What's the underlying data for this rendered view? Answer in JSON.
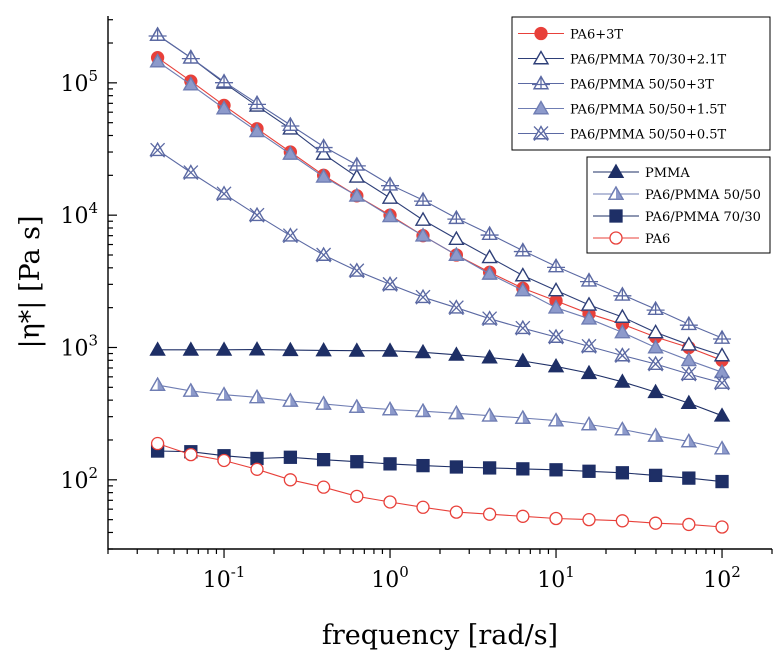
{
  "chart_data": {
    "type": "line",
    "xlabel": "frequency [rad/s]",
    "ylabel": "|η*| [Pa s]",
    "x_scale": "log",
    "y_scale": "log",
    "xlim": [
      0.02,
      200
    ],
    "ylim": [
      30,
      320000
    ],
    "x_ticks": [
      {
        "value": 0.1,
        "base": "10",
        "exp": "-1"
      },
      {
        "value": 1,
        "base": "10",
        "exp": "0"
      },
      {
        "value": 10,
        "base": "10",
        "exp": "1"
      },
      {
        "value": 100,
        "base": "10",
        "exp": "2"
      }
    ],
    "y_ticks": [
      {
        "value": 100,
        "base": "10",
        "exp": "2"
      },
      {
        "value": 1000,
        "base": "10",
        "exp": "3"
      },
      {
        "value": 10000,
        "base": "10",
        "exp": "4"
      },
      {
        "value": 100000,
        "base": "10",
        "exp": "5"
      }
    ],
    "grid": false,
    "x": [
      0.0398,
      0.0631,
      0.1,
      0.158,
      0.251,
      0.398,
      0.631,
      1.0,
      1.58,
      2.51,
      3.98,
      6.31,
      10.0,
      15.8,
      25.1,
      39.8,
      63.1,
      100.0
    ],
    "series": [
      {
        "name": "PA6+3T",
        "color": "#e8403a",
        "line": "#e8403a",
        "marker": "circle",
        "fill": "#e8403a",
        "values": [
          155000,
          103000,
          67500,
          45000,
          30000,
          20000,
          14000,
          10000,
          7000,
          5000,
          3700,
          2800,
          2250,
          1800,
          1500,
          1200,
          1000,
          800
        ]
      },
      {
        "name": "PA6/PMMA 70/30+2.1T",
        "color": "#2e3f78",
        "line": "#2e3f78",
        "marker": "triangle",
        "fill": "none",
        "values": [
          230000,
          155000,
          100000,
          67000,
          45000,
          29000,
          19500,
          13500,
          9200,
          6600,
          4800,
          3500,
          2700,
          2100,
          1700,
          1300,
          1050,
          870
        ]
      },
      {
        "name": "PA6/PMMA 50/50+3T",
        "color": "#5b69a3",
        "line": "#5b69a3",
        "marker": "triangle-cross",
        "fill": "none",
        "values": [
          230000,
          155000,
          102000,
          70000,
          48000,
          33000,
          24000,
          17000,
          13000,
          9500,
          7200,
          5400,
          4100,
          3200,
          2500,
          1950,
          1500,
          1180
        ]
      },
      {
        "name": "PA6/PMMA 50/50+1.5T",
        "color": "#6f7db3",
        "line": "#6f7db3",
        "marker": "triangle",
        "fill": "#8d9acb",
        "values": [
          145000,
          97000,
          64000,
          43000,
          29000,
          19500,
          14000,
          9800,
          7000,
          5000,
          3600,
          2700,
          2000,
          1650,
          1300,
          1000,
          800,
          650
        ]
      },
      {
        "name": "PA6/PMMA 50/50+0.5T",
        "color": "#5b69a3",
        "line": "#5b69a3",
        "marker": "triangle-x",
        "fill": "none",
        "values": [
          31000,
          21000,
          14500,
          10000,
          7000,
          5000,
          3800,
          3000,
          2400,
          2000,
          1650,
          1400,
          1200,
          1020,
          870,
          750,
          630,
          540
        ]
      },
      {
        "name": "PMMA",
        "color": "#1e2f66",
        "line": "#1e2f66",
        "marker": "triangle",
        "fill": "#1e2f66",
        "values": [
          960,
          960,
          960,
          965,
          955,
          950,
          945,
          945,
          920,
          880,
          840,
          790,
          720,
          640,
          550,
          460,
          380,
          305
        ]
      },
      {
        "name": "PA6/PMMA 50/50",
        "color": "#6f7db3",
        "line": "#6f7db3",
        "marker": "triangle-half",
        "fill": "#8d9acb",
        "values": [
          520,
          470,
          440,
          420,
          395,
          375,
          355,
          340,
          330,
          318,
          305,
          293,
          280,
          262,
          240,
          215,
          195,
          172
        ]
      },
      {
        "name": "PA6/PMMA 70/30",
        "color": "#1e2f66",
        "line": "#1e2f66",
        "marker": "square",
        "fill": "#1e2f66",
        "values": [
          165,
          163,
          152,
          145,
          148,
          142,
          137,
          132,
          128,
          125,
          123,
          121,
          119,
          116,
          113,
          108,
          103,
          97
        ]
      },
      {
        "name": "PA6",
        "color": "#e8403a",
        "line": "#e8403a",
        "marker": "circle",
        "fill": "none",
        "values": [
          188,
          155,
          140,
          120,
          100,
          88,
          75,
          68,
          62,
          57,
          55,
          53,
          51,
          50,
          49,
          47,
          46,
          44
        ]
      }
    ],
    "legends": [
      {
        "placement": "top-right",
        "series": [
          0,
          1,
          2,
          3,
          4
        ]
      },
      {
        "placement": "right",
        "series": [
          5,
          6,
          7,
          8
        ]
      }
    ]
  }
}
